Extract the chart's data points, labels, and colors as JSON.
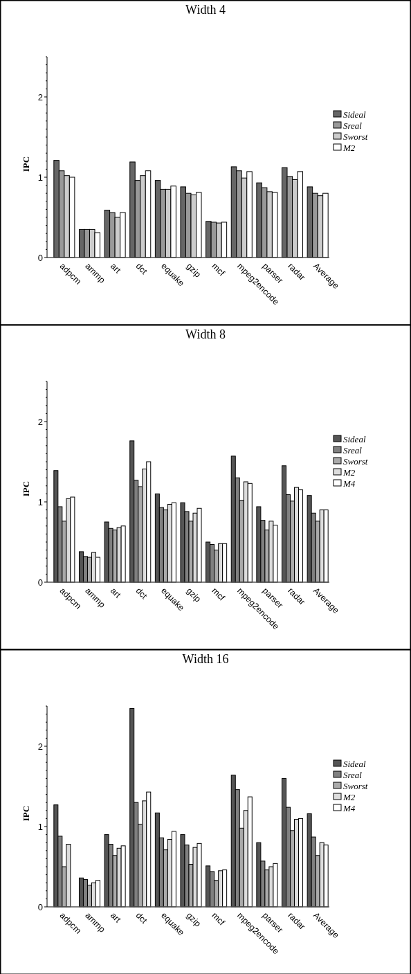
{
  "chart_data": [
    {
      "type": "bar",
      "title": "Width 4",
      "ylabel": "IPC",
      "legend": "right",
      "ylim": [
        0,
        2.5
      ],
      "yticks": [
        0,
        {
          "value": 0.1,
          "label": null
        },
        {
          "value": 0.2,
          "label": null
        },
        {
          "value": 0.3,
          "label": null
        },
        {
          "value": 0.4,
          "label": null
        },
        {
          "value": 0.5,
          "label": null
        },
        {
          "value": 0.6,
          "label": null
        },
        {
          "value": 0.7,
          "label": null
        },
        {
          "value": 0.8,
          "label": null
        },
        {
          "value": 0.9,
          "label": null
        },
        1,
        {
          "value": 1.1,
          "label": null
        },
        {
          "value": 1.2,
          "label": null
        },
        {
          "value": 1.3,
          "label": null
        },
        {
          "value": 1.4,
          "label": null
        },
        {
          "value": 1.5,
          "label": null
        },
        {
          "value": 1.6,
          "label": null
        },
        {
          "value": 1.7,
          "label": null
        },
        {
          "value": 1.8,
          "label": null
        },
        {
          "value": 1.9,
          "label": null
        },
        2,
        {
          "value": 2.1,
          "label": null
        },
        {
          "value": 2.2,
          "label": null
        },
        {
          "value": 2.3,
          "label": null
        },
        {
          "value": 2.4,
          "label": null
        },
        {
          "value": 2.5,
          "label": null
        }
      ],
      "categories": [
        "adpcm",
        "ammp",
        "art",
        "dct",
        "equake",
        "gzip",
        "mcf",
        "mpeg2encode",
        "parser",
        "radar",
        "Average"
      ],
      "series": [
        {
          "name": "Sideal",
          "color": "#666666",
          "values": [
            1.21,
            0.35,
            0.59,
            1.19,
            0.96,
            0.88,
            0.45,
            1.13,
            0.93,
            1.12,
            0.88
          ]
        },
        {
          "name": "Sreal",
          "color": "#999999",
          "values": [
            1.08,
            0.35,
            0.56,
            0.96,
            0.85,
            0.8,
            0.44,
            1.08,
            0.87,
            1.01,
            0.8
          ]
        },
        {
          "name": "Sworst",
          "color": "#cccccc",
          "values": [
            1.02,
            0.35,
            0.5,
            1.02,
            0.85,
            0.78,
            0.43,
            0.99,
            0.82,
            0.97,
            0.77
          ]
        },
        {
          "name": "M2",
          "color": "#ffffff",
          "values": [
            1.0,
            0.31,
            0.56,
            1.08,
            0.89,
            0.81,
            0.44,
            1.07,
            0.81,
            1.07,
            0.8
          ]
        }
      ]
    },
    {
      "type": "bar",
      "title": "Width 8",
      "ylabel": "IPC",
      "legend": "right",
      "ylim": [
        0,
        2.5
      ],
      "yticks": [
        0,
        {
          "value": 0.1,
          "label": null
        },
        {
          "value": 0.2,
          "label": null
        },
        {
          "value": 0.3,
          "label": null
        },
        {
          "value": 0.4,
          "label": null
        },
        {
          "value": 0.5,
          "label": null
        },
        {
          "value": 0.6,
          "label": null
        },
        {
          "value": 0.7,
          "label": null
        },
        {
          "value": 0.8,
          "label": null
        },
        {
          "value": 0.9,
          "label": null
        },
        1,
        {
          "value": 1.1,
          "label": null
        },
        {
          "value": 1.2,
          "label": null
        },
        {
          "value": 1.3,
          "label": null
        },
        {
          "value": 1.4,
          "label": null
        },
        {
          "value": 1.5,
          "label": null
        },
        {
          "value": 1.6,
          "label": null
        },
        {
          "value": 1.7,
          "label": null
        },
        {
          "value": 1.8,
          "label": null
        },
        {
          "value": 1.9,
          "label": null
        },
        2,
        {
          "value": 2.1,
          "label": null
        },
        {
          "value": 2.2,
          "label": null
        },
        {
          "value": 2.3,
          "label": null
        },
        {
          "value": 2.4,
          "label": null
        },
        {
          "value": 2.5,
          "label": null
        }
      ],
      "categories": [
        "adpcm",
        "ammp",
        "art",
        "dct",
        "equake",
        "gzip",
        "mcf",
        "mpeg2encode",
        "parser",
        "radar",
        "Average"
      ],
      "series": [
        {
          "name": "Sideal",
          "color": "#555555",
          "values": [
            1.39,
            0.38,
            0.75,
            1.76,
            1.1,
            0.99,
            0.5,
            1.57,
            0.94,
            1.45,
            1.08
          ]
        },
        {
          "name": "Sreal",
          "color": "#808080",
          "values": [
            0.94,
            0.32,
            0.67,
            1.27,
            0.93,
            0.88,
            0.47,
            1.3,
            0.77,
            1.09,
            0.86
          ]
        },
        {
          "name": "Sworst",
          "color": "#aaaaaa",
          "values": [
            0.76,
            0.31,
            0.65,
            1.19,
            0.9,
            0.76,
            0.4,
            1.02,
            0.65,
            1.01,
            0.76
          ]
        },
        {
          "name": "M2",
          "color": "#dddddd",
          "values": [
            1.04,
            0.37,
            0.68,
            1.41,
            0.97,
            0.86,
            0.48,
            1.25,
            0.76,
            1.18,
            0.9
          ]
        },
        {
          "name": "M4",
          "color": "#ffffff",
          "values": [
            1.06,
            0.31,
            0.7,
            1.5,
            0.99,
            0.92,
            0.48,
            1.23,
            0.71,
            1.15,
            0.9
          ]
        }
      ]
    },
    {
      "type": "bar",
      "title": "Width 16",
      "ylabel": "IPC",
      "legend": "right",
      "ylim": [
        0,
        2.5
      ],
      "yticks": [
        0,
        {
          "value": 0.1,
          "label": null
        },
        {
          "value": 0.2,
          "label": null
        },
        {
          "value": 0.3,
          "label": null
        },
        {
          "value": 0.4,
          "label": null
        },
        {
          "value": 0.5,
          "label": null
        },
        {
          "value": 0.6,
          "label": null
        },
        {
          "value": 0.7,
          "label": null
        },
        {
          "value": 0.8,
          "label": null
        },
        {
          "value": 0.9,
          "label": null
        },
        1,
        {
          "value": 1.1,
          "label": null
        },
        {
          "value": 1.2,
          "label": null
        },
        {
          "value": 1.3,
          "label": null
        },
        {
          "value": 1.4,
          "label": null
        },
        {
          "value": 1.5,
          "label": null
        },
        {
          "value": 1.6,
          "label": null
        },
        {
          "value": 1.7,
          "label": null
        },
        {
          "value": 1.8,
          "label": null
        },
        {
          "value": 1.9,
          "label": null
        },
        2,
        {
          "value": 2.1,
          "label": null
        },
        {
          "value": 2.2,
          "label": null
        },
        {
          "value": 2.3,
          "label": null
        },
        {
          "value": 2.4,
          "label": null
        },
        {
          "value": 2.5,
          "label": null
        }
      ],
      "categories": [
        "adpcm",
        "ammp",
        "art",
        "dct",
        "equake",
        "gzip",
        "mcf",
        "mpeg2encode",
        "parser",
        "radar",
        "Average"
      ],
      "series": [
        {
          "name": "Sideal",
          "color": "#555555",
          "values": [
            1.27,
            0.36,
            0.9,
            2.47,
            1.17,
            0.9,
            0.51,
            1.64,
            0.8,
            1.6,
            1.16
          ]
        },
        {
          "name": "Sreal",
          "color": "#808080",
          "values": [
            0.88,
            0.34,
            0.78,
            1.3,
            0.86,
            0.77,
            0.44,
            1.46,
            0.57,
            1.24,
            0.87
          ]
        },
        {
          "name": "Sworst",
          "color": "#aaaaaa",
          "values": [
            0.5,
            0.27,
            0.64,
            1.03,
            0.71,
            0.53,
            0.33,
            0.98,
            0.46,
            0.95,
            0.64
          ]
        },
        {
          "name": "M2",
          "color": "#dddddd",
          "values": [
            0.78,
            0.3,
            0.73,
            1.32,
            0.84,
            0.74,
            0.45,
            1.2,
            0.5,
            1.09,
            0.8
          ]
        },
        {
          "name": "M4",
          "color": "#ffffff",
          "values": [
            null,
            0.33,
            0.76,
            1.43,
            0.94,
            0.79,
            0.46,
            1.37,
            0.54,
            1.1,
            0.77
          ]
        }
      ]
    }
  ]
}
